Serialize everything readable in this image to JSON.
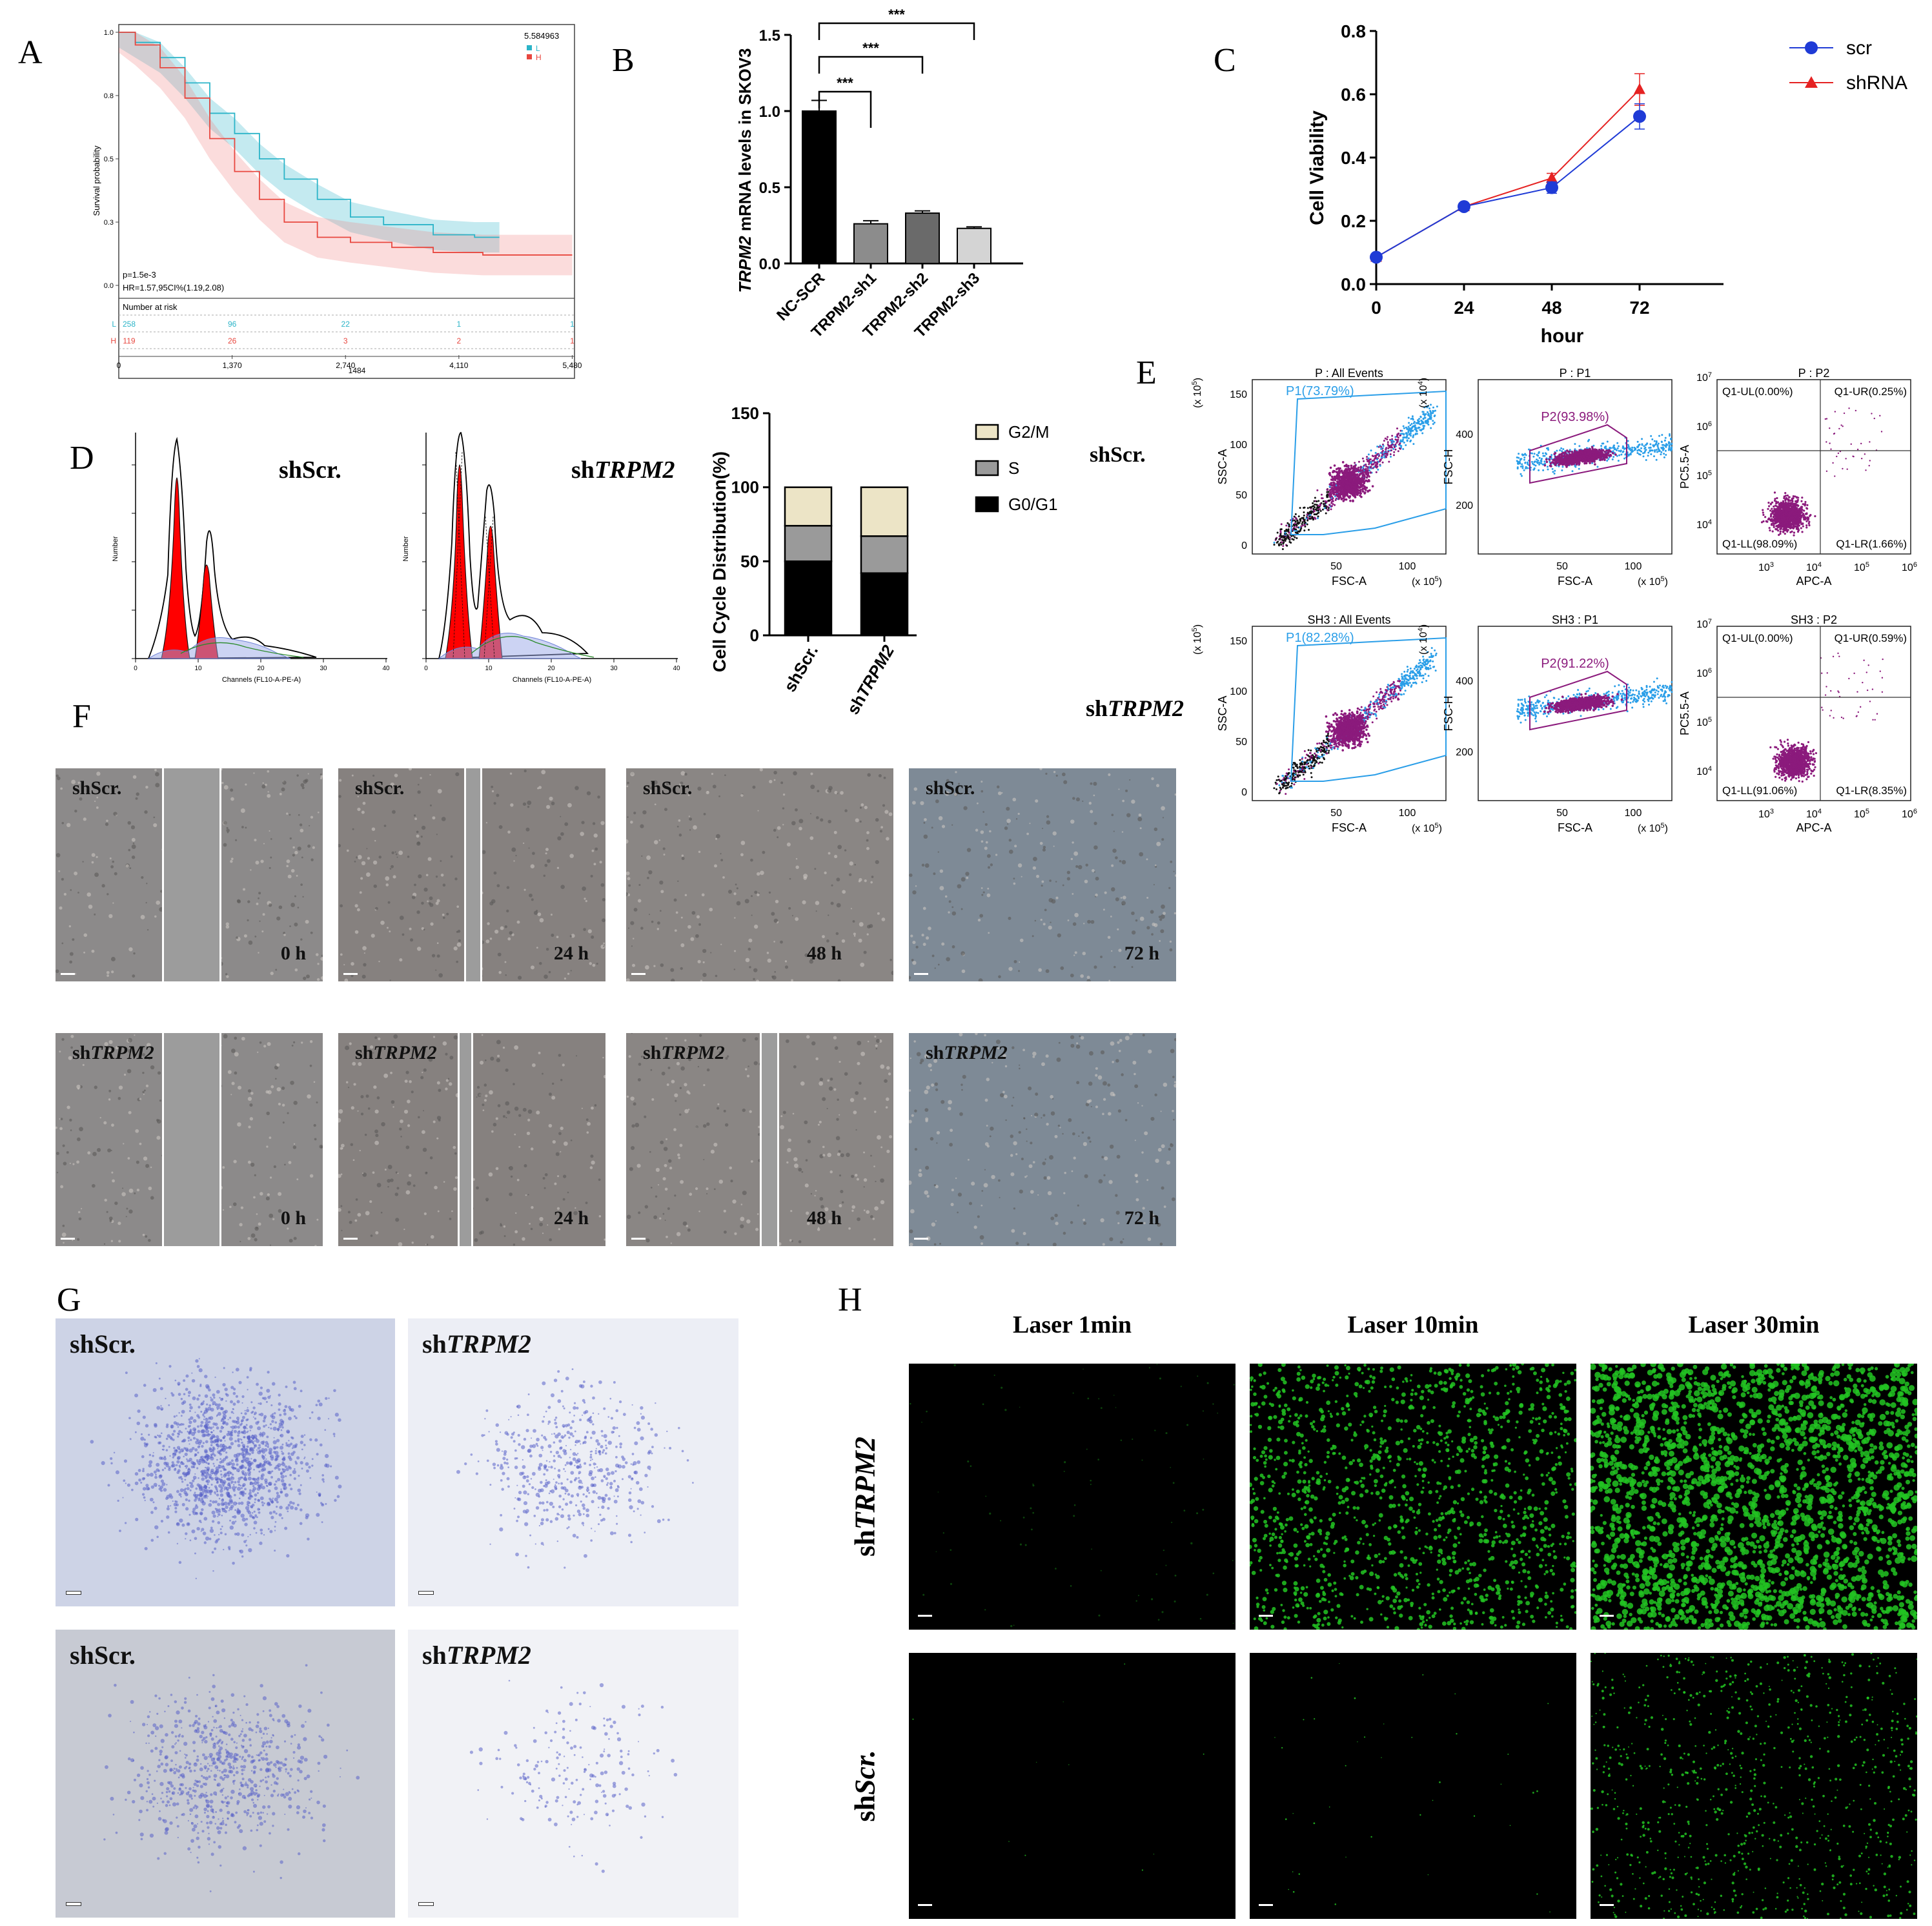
{
  "panels": {
    "A": "A",
    "B": "B",
    "C": "C",
    "D": "D",
    "E": "E",
    "F": "F",
    "G": "G",
    "H": "H"
  },
  "colors": {
    "L": "#2bb4c8",
    "H": "#e8473f",
    "scr": "#1f3bd6",
    "shRNA": "#e52222",
    "purple": "#8b1a7c",
    "blue": "#2a9ee8",
    "green": "#22c322"
  },
  "chart_data": [
    {
      "id": "A",
      "type": "line",
      "ylabel": "Survival probability",
      "y_ticks": [
        "0.0",
        "0.3",
        "0.5",
        "0.8",
        "1.0"
      ],
      "x_ticks": [
        "0",
        "1,370",
        "2,740",
        "4,110",
        "5,480"
      ],
      "x_extra": "1484",
      "legend_value": "5.584963",
      "series": [
        {
          "name": "L"
        },
        {
          "name": "H"
        }
      ],
      "pvalue": "p=1.5e-3",
      "hr": "HR=1.57,95CI%(1.19,2.08)",
      "risk_title": "Number at risk",
      "risk": [
        {
          "group": "L",
          "counts": [
            "258",
            "96",
            "22",
            "1",
            "1"
          ]
        },
        {
          "group": "H",
          "counts": [
            "119",
            "26",
            "3",
            "2",
            "1"
          ]
        }
      ],
      "curve_L": [
        [
          0,
          1.0
        ],
        [
          200,
          0.96
        ],
        [
          500,
          0.9
        ],
        [
          800,
          0.8
        ],
        [
          1100,
          0.68
        ],
        [
          1400,
          0.6
        ],
        [
          1700,
          0.5
        ],
        [
          2000,
          0.42
        ],
        [
          2400,
          0.34
        ],
        [
          2800,
          0.27
        ],
        [
          3200,
          0.24
        ],
        [
          3800,
          0.2
        ],
        [
          4300,
          0.19
        ],
        [
          4600,
          0.19
        ]
      ],
      "curve_H": [
        [
          0,
          1.0
        ],
        [
          200,
          0.95
        ],
        [
          500,
          0.86
        ],
        [
          800,
          0.74
        ],
        [
          1100,
          0.58
        ],
        [
          1400,
          0.45
        ],
        [
          1700,
          0.34
        ],
        [
          2000,
          0.25
        ],
        [
          2400,
          0.19
        ],
        [
          2800,
          0.17
        ],
        [
          3300,
          0.15
        ],
        [
          3800,
          0.13
        ],
        [
          4400,
          0.12
        ],
        [
          5480,
          0.12
        ]
      ]
    },
    {
      "id": "B",
      "type": "bar",
      "ylabel": "TRPM2 mRNA levels in SKOV3",
      "categories": [
        "NC-SCR",
        "TRPM2-sh1",
        "TRPM2-sh2",
        "TRPM2-sh3"
      ],
      "values": [
        1.0,
        0.26,
        0.33,
        0.23
      ],
      "errors": [
        0.07,
        0.02,
        0.015,
        0.01
      ],
      "fills": [
        "#000000",
        "#8c8c8c",
        "#6a6a6a",
        "#d4d4d4"
      ],
      "ylim": [
        0,
        1.5
      ],
      "y_ticks": [
        "0.0",
        "0.5",
        "1.0",
        "1.5"
      ],
      "significance": "***"
    },
    {
      "id": "C",
      "type": "line",
      "ylabel": "Cell Viability",
      "xlabel": "hour",
      "x": [
        0,
        24,
        48,
        72
      ],
      "ylim": [
        0,
        0.8
      ],
      "y_ticks": [
        "0.0",
        "0.2",
        "0.4",
        "0.6",
        "0.8"
      ],
      "x_ticks": [
        "0",
        "24",
        "48",
        "72"
      ],
      "series": [
        {
          "name": "scr",
          "values": [
            0.085,
            0.245,
            0.305,
            0.53
          ],
          "errors": [
            0,
            0.005,
            0.018,
            0.04
          ]
        },
        {
          "name": "shRNA",
          "values": [
            0.085,
            0.245,
            0.335,
            0.615
          ],
          "errors": [
            0,
            0.005,
            0.015,
            0.05
          ]
        }
      ]
    },
    {
      "id": "D-bar",
      "type": "bar",
      "ylabel": "Cell Cycle Distribution(%)",
      "categories": [
        "shScr.",
        "shTRPM2"
      ],
      "series": [
        {
          "name": "G0/G1",
          "values": [
            50,
            42
          ]
        },
        {
          "name": "S",
          "values": [
            24,
            25
          ]
        },
        {
          "name": "G2/M",
          "values": [
            26,
            33
          ]
        }
      ],
      "ylim": [
        0,
        150
      ],
      "y_ticks": [
        "0",
        "50",
        "100",
        "150"
      ]
    }
  ],
  "D": {
    "hist1_label": "shScr.",
    "hist2_prefix": "sh",
    "hist2_italic": "TRPM2",
    "xlabel": "Channels (FL10-A-PE-A)",
    "ylabel": "Number",
    "x_ticks": [
      "0",
      "10",
      "20",
      "30",
      "40"
    ],
    "right_label": "shScr.",
    "bottom_prefix": "sh",
    "bottom_italic": "TRPM2"
  },
  "E": {
    "rows": [
      {
        "t1": "P : All Events",
        "t2": "P : P1",
        "t3": "P : P2",
        "gate1": "P1(73.79%)",
        "gate2": "P2(93.98%)",
        "q": [
          "Q1-UL(0.00%)",
          "Q1-UR(0.25%)",
          "Q1-LL(98.09%)",
          "Q1-LR(1.66%)"
        ]
      },
      {
        "t1": "SH3 : All Events",
        "t2": "SH3 : P1",
        "t3": "SH3 : P2",
        "gate1": "P1(82.28%)",
        "gate2": "P2(91.22%)",
        "q": [
          "Q1-UL(0.00%)",
          "Q1-UR(0.59%)",
          "Q1-LL(91.06%)",
          "Q1-LR(8.35%)"
        ]
      }
    ],
    "ylab1": "SSC-A",
    "ylab2": "FSC-H",
    "ylab3": "PC5.5-A",
    "xlab1": "FSC-A",
    "xlab2": "FSC-A",
    "xlab3": "APC-A",
    "unit5": "(x 10",
    "unit4": "(x 10",
    "ssc_ticks": [
      "0",
      "50",
      "100",
      "150"
    ],
    "fsch_ticks": [
      "200",
      "400"
    ],
    "fsc_ticks": [
      "50",
      "100"
    ]
  },
  "F": {
    "top_label": "shScr.",
    "bottom_prefix": "sh",
    "bottom_italic": "TRPM2",
    "times": [
      "0 h",
      "24 h",
      "48 h",
      "72 h"
    ]
  },
  "G": {
    "l1": "shScr.",
    "l2_prefix": "sh",
    "l2_italic": "TRPM2"
  },
  "H": {
    "cols": [
      "Laser 1min",
      "Laser 10min",
      "Laser 30min"
    ],
    "row1_prefix": "sh",
    "row1_italic": "TRPM2",
    "row2_prefix": "sh",
    "row2_italic": "Scr."
  }
}
